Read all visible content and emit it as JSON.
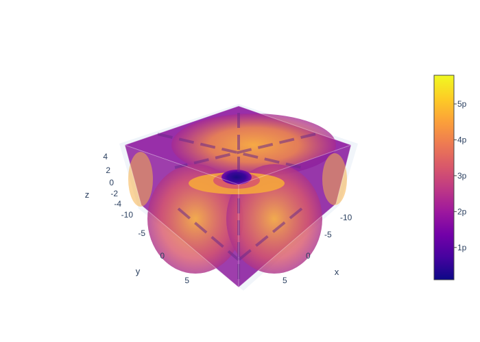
{
  "chart_data": {
    "type": "volume",
    "description_units": "3D scalar field shown as translucent isosurfaces",
    "axes": {
      "x": {
        "title": "x",
        "tick_labels": [
          "-10",
          "-5",
          "0",
          "5"
        ],
        "range": [
          -10,
          10
        ]
      },
      "y": {
        "title": "y",
        "tick_labels": [
          "-10",
          "-5",
          "0",
          "5"
        ],
        "range": [
          -10,
          10
        ]
      },
      "z": {
        "title": "z",
        "tick_labels": [
          "-4",
          "-2",
          "0",
          "2",
          "4"
        ],
        "range": [
          -5,
          5
        ]
      }
    },
    "colorbar": {
      "colorscale": "plasma",
      "tick_labels": [
        "1p",
        "2p",
        "3p",
        "4p",
        "5p"
      ],
      "tick_values": [
        1,
        2,
        3,
        4,
        5
      ],
      "range": [
        0.1,
        5.8
      ],
      "colors": [
        "#0d0887",
        "#46039f",
        "#7201a8",
        "#9c179e",
        "#bd3786",
        "#d8576b",
        "#ed7953",
        "#fb9f3a",
        "#fdca26",
        "#f0f921"
      ]
    }
  }
}
